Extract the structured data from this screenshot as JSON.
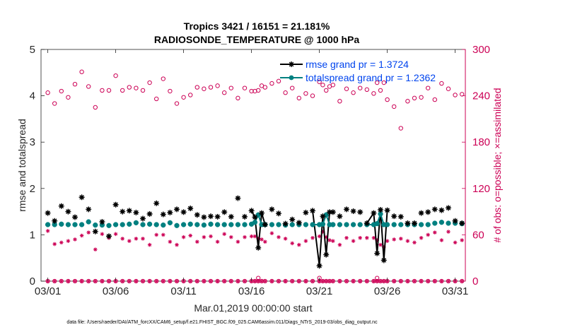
{
  "chart_data": {
    "type": "line",
    "title": "Tropics 3421 / 16151 = 21.181%",
    "subtitle": "RADIOSONDE_TEMPERATURE @ 1000 hPa",
    "xlabel": "Mar.01,2019 00:00:00 start",
    "ylabel": "rmse and totalspread",
    "y2label": "# of obs: o=possible; ×=assimilated",
    "footer": "data file: /Users/raeder/DAI/ATM_forcXX/CAM6_setup/f.e21.FHIST_BGC.f09_025.CAM6assim.011/Diags_NTrS_2019-03/obs_diag_output.nc",
    "xlim": [
      0.5,
      31.75
    ],
    "ylim": [
      0,
      5
    ],
    "y2lim": [
      0,
      300
    ],
    "x_ticks": [
      1,
      6,
      11,
      16,
      21,
      26,
      31
    ],
    "x_tick_labels": [
      "03/01",
      "03/06",
      "03/11",
      "03/16",
      "03/21",
      "03/26",
      "03/31"
    ],
    "y_ticks": [
      "0",
      "1",
      "2",
      "3",
      "4",
      "5"
    ],
    "y2_ticks": [
      "0",
      "60",
      "120",
      "180",
      "240",
      "300"
    ],
    "grid": false,
    "legend_position": "top-right",
    "x": [
      1,
      1.5,
      2,
      2.5,
      3,
      3.5,
      4,
      4.5,
      5,
      5.5,
      6,
      6.5,
      7,
      7.5,
      8,
      8.5,
      9,
      9.5,
      10,
      10.5,
      11,
      11.5,
      12,
      12.5,
      13,
      13.5,
      14,
      14.5,
      15,
      15.5,
      16,
      16.25,
      16.5,
      16.75,
      17,
      17.5,
      18,
      18.5,
      19,
      19.5,
      20,
      20.5,
      21,
      21.25,
      21.5,
      21.75,
      22,
      22.5,
      23,
      23.5,
      24,
      24.5,
      25,
      25.25,
      25.5,
      25.75,
      26,
      26.5,
      27,
      27.5,
      28,
      28.5,
      29,
      29.5,
      30,
      30.5,
      31,
      31.5
    ],
    "series": [
      {
        "name": "rmse grand pr = 1.3724",
        "color": "#000000",
        "values": [
          1.47,
          1.3,
          1.62,
          1.5,
          1.38,
          1.81,
          1.55,
          1.07,
          1.28,
          0.97,
          1.65,
          1.5,
          1.52,
          1.48,
          1.35,
          1.45,
          1.68,
          1.44,
          1.48,
          1.55,
          1.49,
          1.57,
          1.43,
          1.38,
          1.4,
          1.39,
          1.49,
          1.39,
          1.79,
          1.39,
          1.52,
          1.38,
          0.72,
          1.47,
          1.22,
          1.55,
          1.46,
          1.24,
          1.33,
          1.26,
          1.48,
          1.52,
          0.33,
          1.4,
          0.57,
          1.49,
          1.49,
          1.4,
          1.55,
          1.51,
          1.49,
          1.25,
          1.47,
          0.6,
          1.54,
          0.45,
          1.53,
          1.4,
          1.39,
          1.25,
          1.25,
          1.47,
          1.49,
          1.55,
          1.53,
          1.58,
          1.3,
          1.25
        ]
      },
      {
        "name": "totalspread grand pr = 1.2362",
        "color": "#008080",
        "values": [
          1.22,
          1.22,
          1.23,
          1.22,
          1.22,
          1.22,
          1.28,
          1.21,
          1.21,
          1.2,
          1.22,
          1.22,
          1.23,
          1.26,
          1.22,
          1.23,
          1.22,
          1.21,
          1.26,
          1.2,
          1.22,
          1.23,
          1.22,
          1.21,
          1.23,
          1.22,
          1.22,
          1.22,
          1.22,
          1.22,
          1.23,
          1.27,
          1.43,
          1.22,
          1.22,
          1.22,
          1.22,
          1.21,
          1.22,
          1.22,
          1.22,
          1.22,
          1.22,
          1.23,
          1.43,
          1.22,
          1.22,
          1.22,
          1.22,
          1.22,
          1.22,
          1.22,
          1.22,
          1.24,
          1.45,
          1.22,
          1.22,
          1.22,
          1.22,
          1.22,
          1.22,
          1.22,
          1.22,
          1.25,
          1.27,
          1.25,
          1.25,
          1.24
        ]
      }
    ],
    "obs_possible": [
      244,
      230,
      246,
      238,
      255,
      271,
      252,
      225,
      247,
      247,
      266,
      247,
      251,
      250,
      247,
      257,
      236,
      262,
      246,
      230,
      238,
      241,
      251,
      249,
      251,
      253,
      244,
      250,
      237,
      250,
      246,
      246,
      247,
      253,
      251,
      256,
      259,
      244,
      250,
      237,
      243,
      240,
      258,
      254,
      247,
      252,
      254,
      233,
      249,
      244,
      250,
      248,
      243,
      257,
      247,
      257,
      235,
      226,
      198,
      233,
      237,
      238,
      250,
      235,
      256,
      249,
      241,
      242
    ],
    "obs_assimilated": [
      65,
      48,
      50,
      52,
      54,
      59,
      63,
      41,
      61,
      56,
      61,
      55,
      52,
      55,
      55,
      47,
      60,
      60,
      51,
      47,
      57,
      59,
      51,
      57,
      58,
      51,
      61,
      57,
      51,
      57,
      58,
      58,
      55,
      54,
      51,
      62,
      57,
      55,
      49,
      47,
      52,
      56,
      58,
      64,
      57,
      53,
      52,
      47,
      56,
      52,
      56,
      56,
      56,
      53,
      47,
      44,
      52,
      54,
      55,
      52,
      50,
      56,
      60,
      63,
      53,
      64,
      50,
      53
    ],
    "possible_zero_markers": [
      16.5,
      21,
      25.25
    ],
    "colors": {
      "rmse": "#000000",
      "spread": "#008080",
      "obs": "#cc0055",
      "legend_text": "#0044ee"
    }
  }
}
